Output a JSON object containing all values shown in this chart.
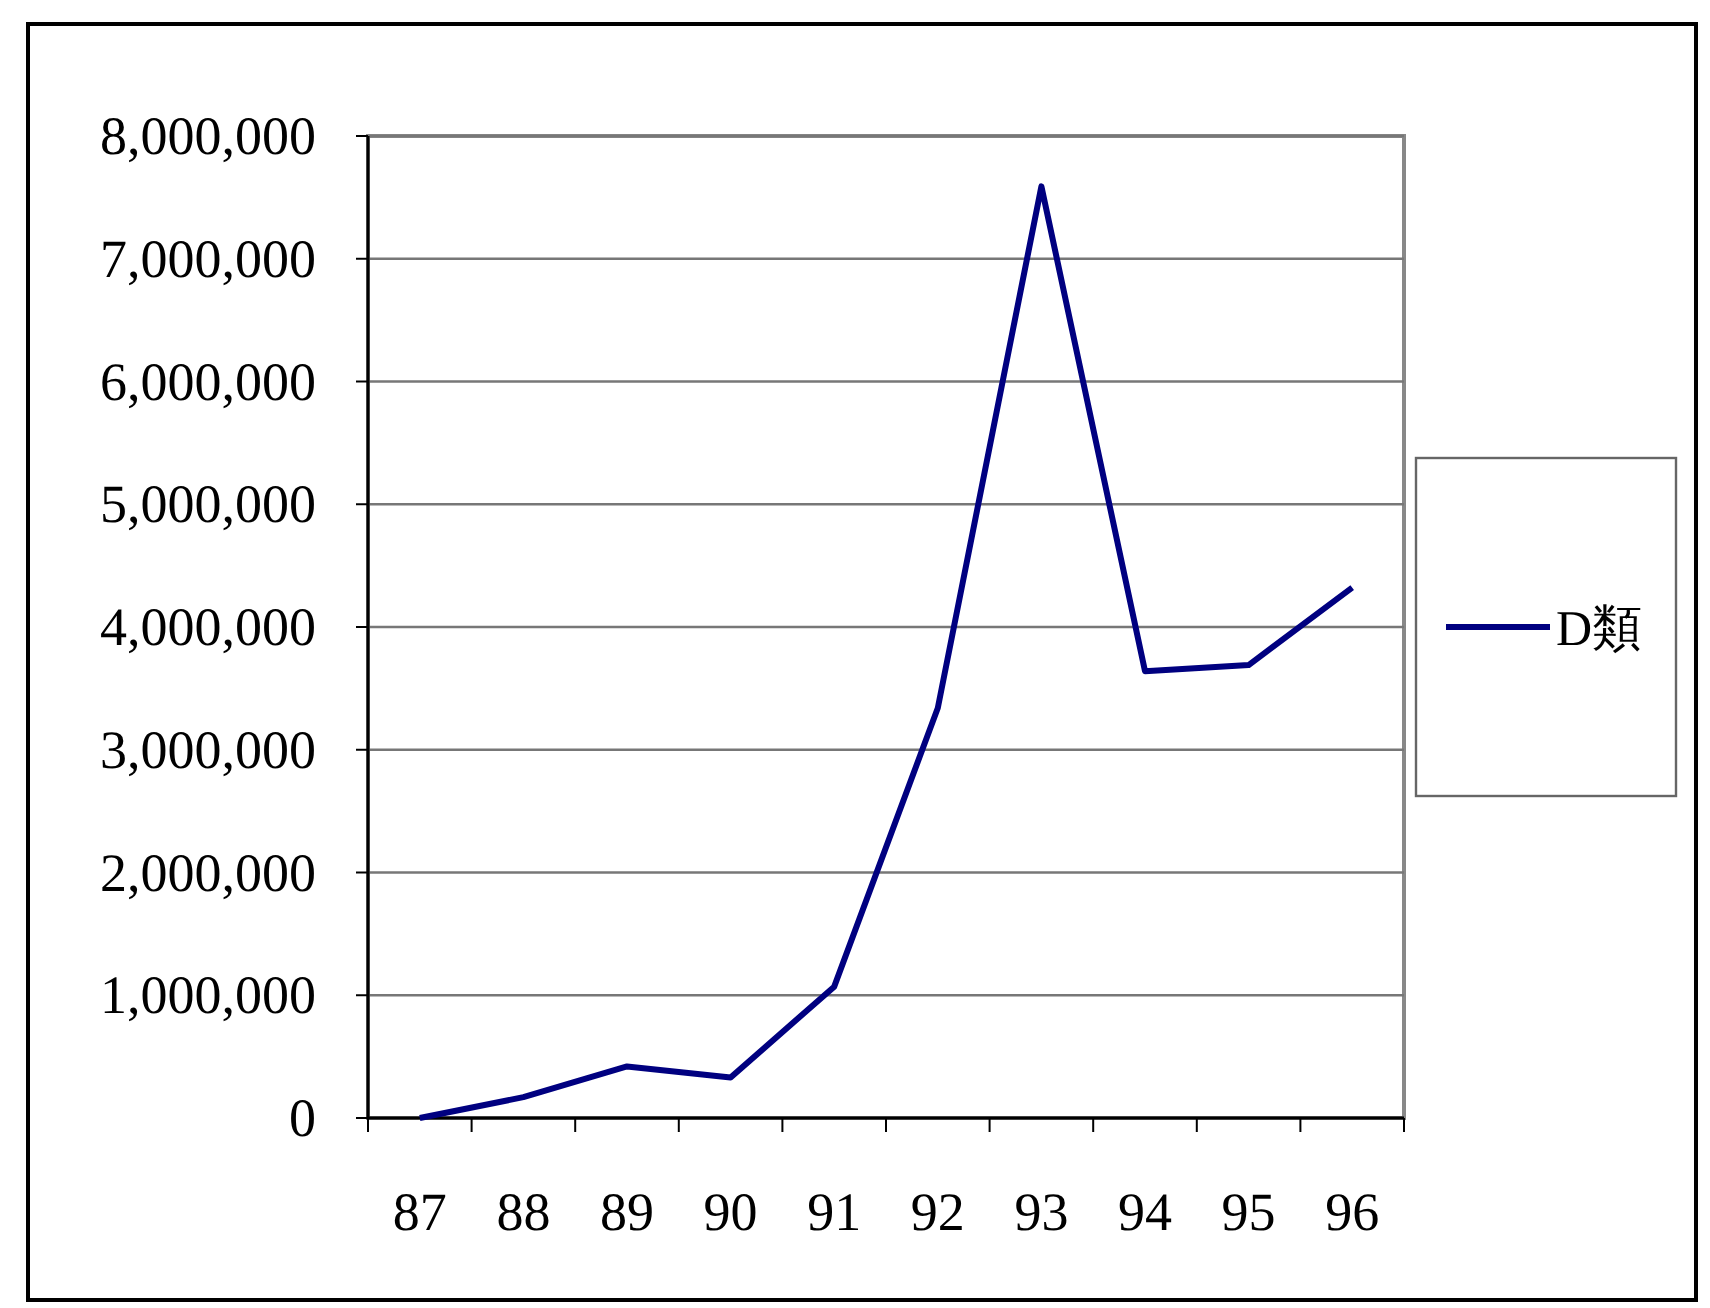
{
  "chart_data": {
    "type": "line",
    "categories": [
      "87",
      "88",
      "89",
      "90",
      "91",
      "92",
      "93",
      "94",
      "95",
      "96"
    ],
    "series": [
      {
        "name": "D類",
        "color": "#000080",
        "values": [
          0,
          170000,
          420000,
          330000,
          1070000,
          3340000,
          7590000,
          3640000,
          3690000,
          4320000
        ]
      }
    ],
    "ylim": [
      0,
      8000000
    ],
    "yticks": [
      {
        "value": 0,
        "label": "0"
      },
      {
        "value": 1000000,
        "label": "1,000,000"
      },
      {
        "value": 2000000,
        "label": "2,000,000"
      },
      {
        "value": 3000000,
        "label": "3,000,000"
      },
      {
        "value": 4000000,
        "label": "4,000,000"
      },
      {
        "value": 5000000,
        "label": "5,000,000"
      },
      {
        "value": 6000000,
        "label": "6,000,000"
      },
      {
        "value": 7000000,
        "label": "7,000,000"
      },
      {
        "value": 8000000,
        "label": "8,000,000"
      }
    ],
    "grid": "y",
    "legend": "right",
    "marker": "none",
    "line_style": "solid"
  }
}
